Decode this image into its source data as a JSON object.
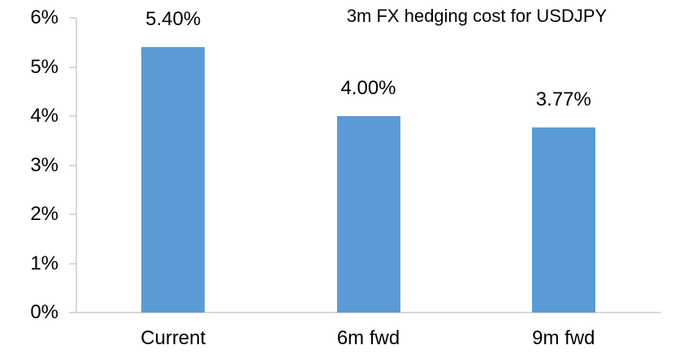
{
  "chart_data": {
    "type": "bar",
    "title": "3m FX hedging cost for USDJPY",
    "categories": [
      "Current",
      "6m fwd",
      "9m fwd"
    ],
    "values": [
      5.4,
      4.0,
      3.77
    ],
    "value_labels": [
      "5.40%",
      "4.00%",
      "3.77%"
    ],
    "xlabel": "",
    "ylabel": "",
    "ylim": [
      0,
      6
    ],
    "yticks": [
      {
        "value": 6,
        "label": "6%"
      },
      {
        "value": 5,
        "label": "5%"
      },
      {
        "value": 4,
        "label": "4%"
      },
      {
        "value": 3,
        "label": "3%"
      },
      {
        "value": 2,
        "label": "2%"
      },
      {
        "value": 1,
        "label": "1%"
      },
      {
        "value": 0,
        "label": "0%"
      }
    ],
    "grid": false,
    "legend": false,
    "bar_color": "#5B9BD5",
    "axis_color": "#D9D9D9",
    "text_color": "#000000",
    "background": "#FFFFFF"
  }
}
